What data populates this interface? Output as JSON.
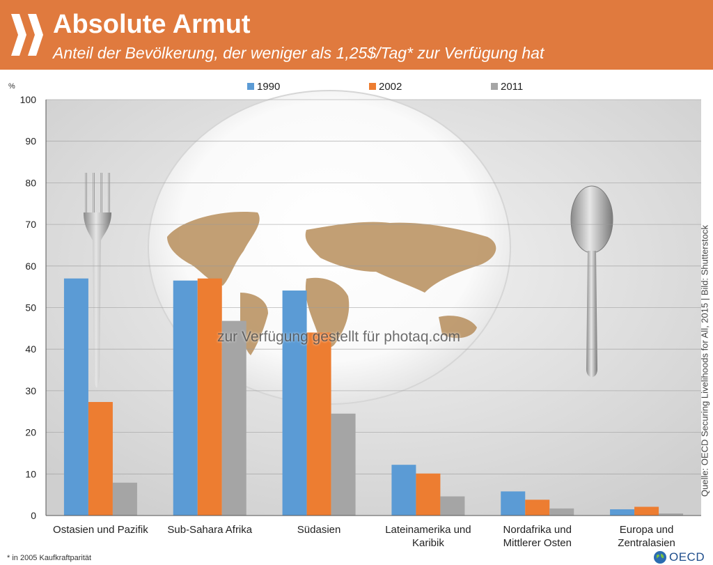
{
  "header": {
    "title": "Absolute Armut",
    "subtitle": "Anteil der Bevölkerung, der weniger als 1,25$/Tag* zur Verfügung hat"
  },
  "colors": {
    "header_bg": "#e07a3e",
    "series_1990": "#5b9bd5",
    "series_2002": "#ed7d31",
    "series_2011": "#a5a5a5"
  },
  "watermark": "zur Verfügung gestellt für photaq.com",
  "source": "Quelle: OECD Securing Livelihoods for All, 2015 | Bild: Shutterstock",
  "footnote": "* in 2005 Kaufkraftparität",
  "brand": "OECD",
  "icons": [
    "oecd-chevrons-logo",
    "oecd-globe-icon",
    "fork-photo",
    "spoon-photo",
    "plate-world-map-photo"
  ],
  "chart_data": {
    "type": "bar",
    "ylabel": "%",
    "ylim": [
      0,
      100
    ],
    "yticks": [
      0,
      10,
      20,
      30,
      40,
      50,
      60,
      70,
      80,
      90,
      100
    ],
    "grid": true,
    "legend_position": "top",
    "categories": [
      [
        "Ostasien und Pazifik"
      ],
      [
        "Sub-Sahara Afrika"
      ],
      [
        "Südasien"
      ],
      [
        "Lateinamerika und",
        "Karibik"
      ],
      [
        "Nordafrika und",
        "Mittlerer Osten"
      ],
      [
        "Europa und",
        "Zentralasien"
      ]
    ],
    "series": [
      {
        "name": "1990",
        "color": "#5b9bd5",
        "values": [
          57,
          56.5,
          54.1,
          12.2,
          5.8,
          1.5
        ]
      },
      {
        "name": "2002",
        "color": "#ed7d31",
        "values": [
          27.3,
          57,
          44,
          10.1,
          3.8,
          2.1
        ]
      },
      {
        "name": "2011",
        "color": "#a5a5a5",
        "values": [
          7.9,
          46.8,
          24.5,
          4.6,
          1.7,
          0.5
        ]
      }
    ]
  }
}
